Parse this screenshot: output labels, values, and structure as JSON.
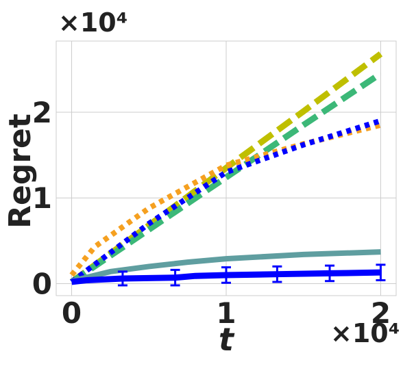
{
  "chart_data": {
    "type": "line",
    "x_label": "t",
    "y_label": "Regret",
    "x_offset_label": "×10⁴",
    "y_offset_label": "×10⁴",
    "xlim": [
      -0.1,
      2.1
    ],
    "ylim": [
      -0.14,
      2.83
    ],
    "xticks": [
      0,
      1,
      2
    ],
    "yticks": [
      0,
      1,
      2
    ],
    "grid": true,
    "series": [
      {
        "color": "#bfbf00",
        "style": "dashed",
        "width": 9,
        "x": [
          0,
          0.5,
          1,
          1.5,
          2
        ],
        "values": [
          0.02,
          0.68,
          1.35,
          2.01,
          2.68
        ]
      },
      {
        "color": "#3cb878",
        "style": "dashed",
        "width": 9,
        "x": [
          0,
          0.5,
          1,
          1.5,
          2
        ],
        "values": [
          0.02,
          0.63,
          1.24,
          1.85,
          2.45
        ]
      },
      {
        "color": "#f5a020",
        "style": "dotted",
        "width": 8,
        "x": [
          0,
          0.15,
          0.5,
          1,
          1.5,
          2
        ],
        "values": [
          0.1,
          0.43,
          0.88,
          1.38,
          1.63,
          1.85
        ]
      },
      {
        "color": "#0000ff",
        "style": "dotted",
        "width": 8,
        "x": [
          0,
          0.5,
          1,
          1.5,
          2
        ],
        "values": [
          0.02,
          0.7,
          1.3,
          1.62,
          1.9
        ]
      },
      {
        "color": "#5f9ea0",
        "style": "solid",
        "width": 8,
        "x": [
          0,
          0.25,
          0.5,
          0.75,
          1,
          1.5,
          2
        ],
        "values": [
          0.03,
          0.14,
          0.2,
          0.25,
          0.29,
          0.34,
          0.37
        ]
      },
      {
        "color": "#0000ff",
        "style": "solid",
        "width": 9,
        "x": [
          0,
          0.1,
          0.33,
          0.67,
          0.8,
          1,
          1.33,
          1.67,
          2
        ],
        "values": [
          0.02,
          0.04,
          0.06,
          0.07,
          0.09,
          0.1,
          0.11,
          0.12,
          0.13
        ],
        "errors": [
          null,
          null,
          0.08,
          0.09,
          null,
          0.09,
          0.09,
          0.09,
          0.09
        ]
      }
    ]
  }
}
